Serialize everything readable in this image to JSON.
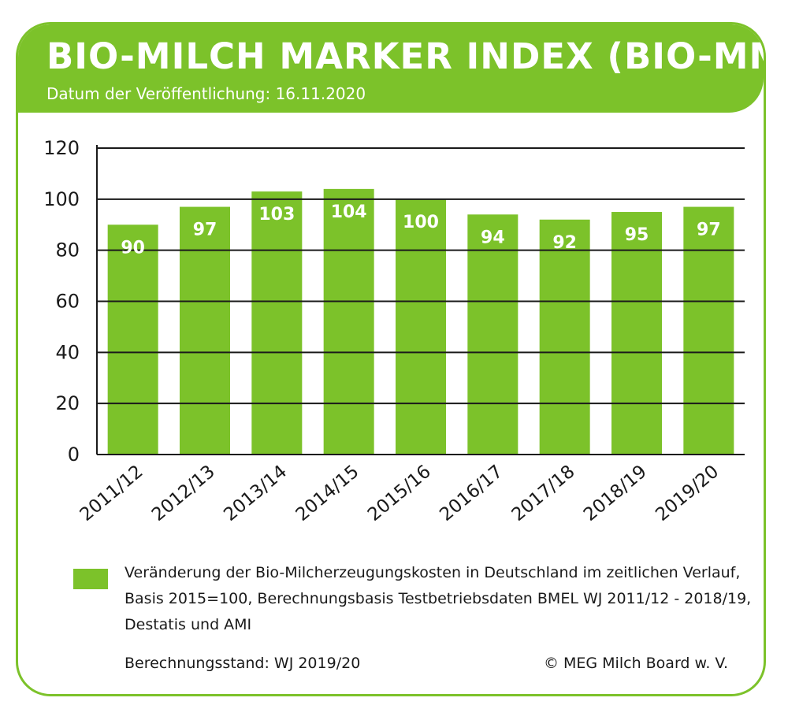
{
  "header": {
    "title": "BIO-MILCH MARKER INDEX (BIO-MMI)",
    "subtitle": "Datum der Veröffentlichung: 16.11.2020"
  },
  "colors": {
    "accent": "#7cc22a",
    "bar": "#7cc22a",
    "grid": "#1a1a1a",
    "text": "#1a1a1a"
  },
  "chart_data": {
    "type": "bar",
    "title": "BIO-MILCH MARKER INDEX (BIO-MMI)",
    "categories": [
      "2011/12",
      "2012/13",
      "2013/14",
      "2014/15",
      "2015/16",
      "2016/17",
      "2017/18",
      "2018/19",
      "2019/20"
    ],
    "series": [
      {
        "name": "Veränderung der Bio-Milcherzeugungskosten in Deutschland im zeitlichen Verlauf, Basis 2015=100, Berechnungsbasis Testbetriebsdaten BMEL WJ 2011/12 - 2018/19, Destatis und AMI",
        "values": [
          90,
          97,
          103,
          104,
          100,
          94,
          92,
          95,
          97
        ]
      }
    ],
    "data_labels": [
      "90",
      "97",
      "103",
      "104",
      "100",
      "94",
      "92",
      "95",
      "97"
    ],
    "yticks": [
      0,
      20,
      40,
      60,
      80,
      100,
      120
    ],
    "ylim": [
      0,
      120
    ],
    "grid": true,
    "legend_position": "bottom-left",
    "xlabel": "",
    "ylabel": ""
  },
  "legend": {
    "label": "Veränderung der Bio-Milcherzeugungskosten in Deutschland im zeitlichen Verlauf, Basis 2015=100, Berechnungsbasis Testbetriebsdaten BMEL WJ 2011/12 - 2018/19, Destatis und AMI"
  },
  "footer": {
    "stand": "Berechnungsstand: WJ 2019/20",
    "copyright": "© MEG Milch Board w. V."
  }
}
